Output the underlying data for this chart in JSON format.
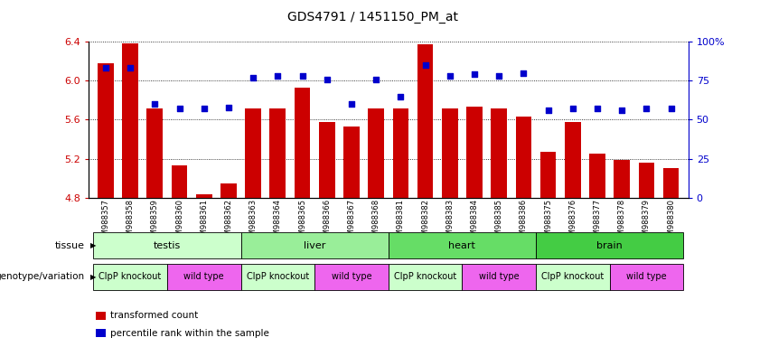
{
  "title": "GDS4791 / 1451150_PM_at",
  "samples": [
    "GSM988357",
    "GSM988358",
    "GSM988359",
    "GSM988360",
    "GSM988361",
    "GSM988362",
    "GSM988363",
    "GSM988364",
    "GSM988365",
    "GSM988366",
    "GSM988367",
    "GSM988368",
    "GSM988381",
    "GSM988382",
    "GSM988383",
    "GSM988384",
    "GSM988385",
    "GSM988386",
    "GSM988375",
    "GSM988376",
    "GSM988377",
    "GSM988378",
    "GSM988379",
    "GSM988380"
  ],
  "bar_values": [
    6.18,
    6.38,
    5.72,
    5.13,
    4.84,
    4.95,
    5.72,
    5.72,
    5.93,
    5.58,
    5.53,
    5.72,
    5.72,
    6.37,
    5.72,
    5.73,
    5.72,
    5.63,
    5.27,
    5.58,
    5.25,
    5.19,
    5.16,
    5.1
  ],
  "percentile_values": [
    83,
    83,
    60,
    57,
    57,
    58,
    77,
    78,
    78,
    76,
    60,
    76,
    65,
    85,
    78,
    79,
    78,
    80,
    56,
    57,
    57,
    56,
    57,
    57
  ],
  "ymin": 4.8,
  "ymax": 6.4,
  "yticks": [
    4.8,
    5.2,
    5.6,
    6.0,
    6.4
  ],
  "ytick_labels": [
    "4.8",
    "5.2",
    "5.6",
    "6.0",
    "6.4"
  ],
  "right_yticks": [
    0,
    25,
    50,
    75,
    100
  ],
  "right_ytick_labels": [
    "0",
    "25",
    "50",
    "75",
    "100%"
  ],
  "bar_color": "#cc0000",
  "dot_color": "#0000cc",
  "bar_width": 0.65,
  "tissues": [
    {
      "label": "testis",
      "start": 0,
      "end": 6,
      "color": "#ccffcc"
    },
    {
      "label": "liver",
      "start": 6,
      "end": 12,
      "color": "#99ee99"
    },
    {
      "label": "heart",
      "start": 12,
      "end": 18,
      "color": "#66dd66"
    },
    {
      "label": "brain",
      "start": 18,
      "end": 24,
      "color": "#44cc44"
    }
  ],
  "genotypes": [
    {
      "label": "ClpP knockout",
      "start": 0,
      "end": 3,
      "color": "#ccffcc"
    },
    {
      "label": "wild type",
      "start": 3,
      "end": 6,
      "color": "#ee66ee"
    },
    {
      "label": "ClpP knockout",
      "start": 6,
      "end": 9,
      "color": "#ccffcc"
    },
    {
      "label": "wild type",
      "start": 9,
      "end": 12,
      "color": "#ee66ee"
    },
    {
      "label": "ClpP knockout",
      "start": 12,
      "end": 15,
      "color": "#ccffcc"
    },
    {
      "label": "wild type",
      "start": 15,
      "end": 18,
      "color": "#ee66ee"
    },
    {
      "label": "ClpP knockout",
      "start": 18,
      "end": 21,
      "color": "#ccffcc"
    },
    {
      "label": "wild type",
      "start": 21,
      "end": 24,
      "color": "#ee66ee"
    }
  ],
  "legend_items": [
    {
      "label": "transformed count",
      "color": "#cc0000"
    },
    {
      "label": "percentile rank within the sample",
      "color": "#0000cc"
    }
  ],
  "tissue_label": "tissue",
  "genotype_label": "genotype/variation",
  "left_axis_color": "#cc0000",
  "right_axis_color": "#0000cc",
  "title_fontsize": 10
}
